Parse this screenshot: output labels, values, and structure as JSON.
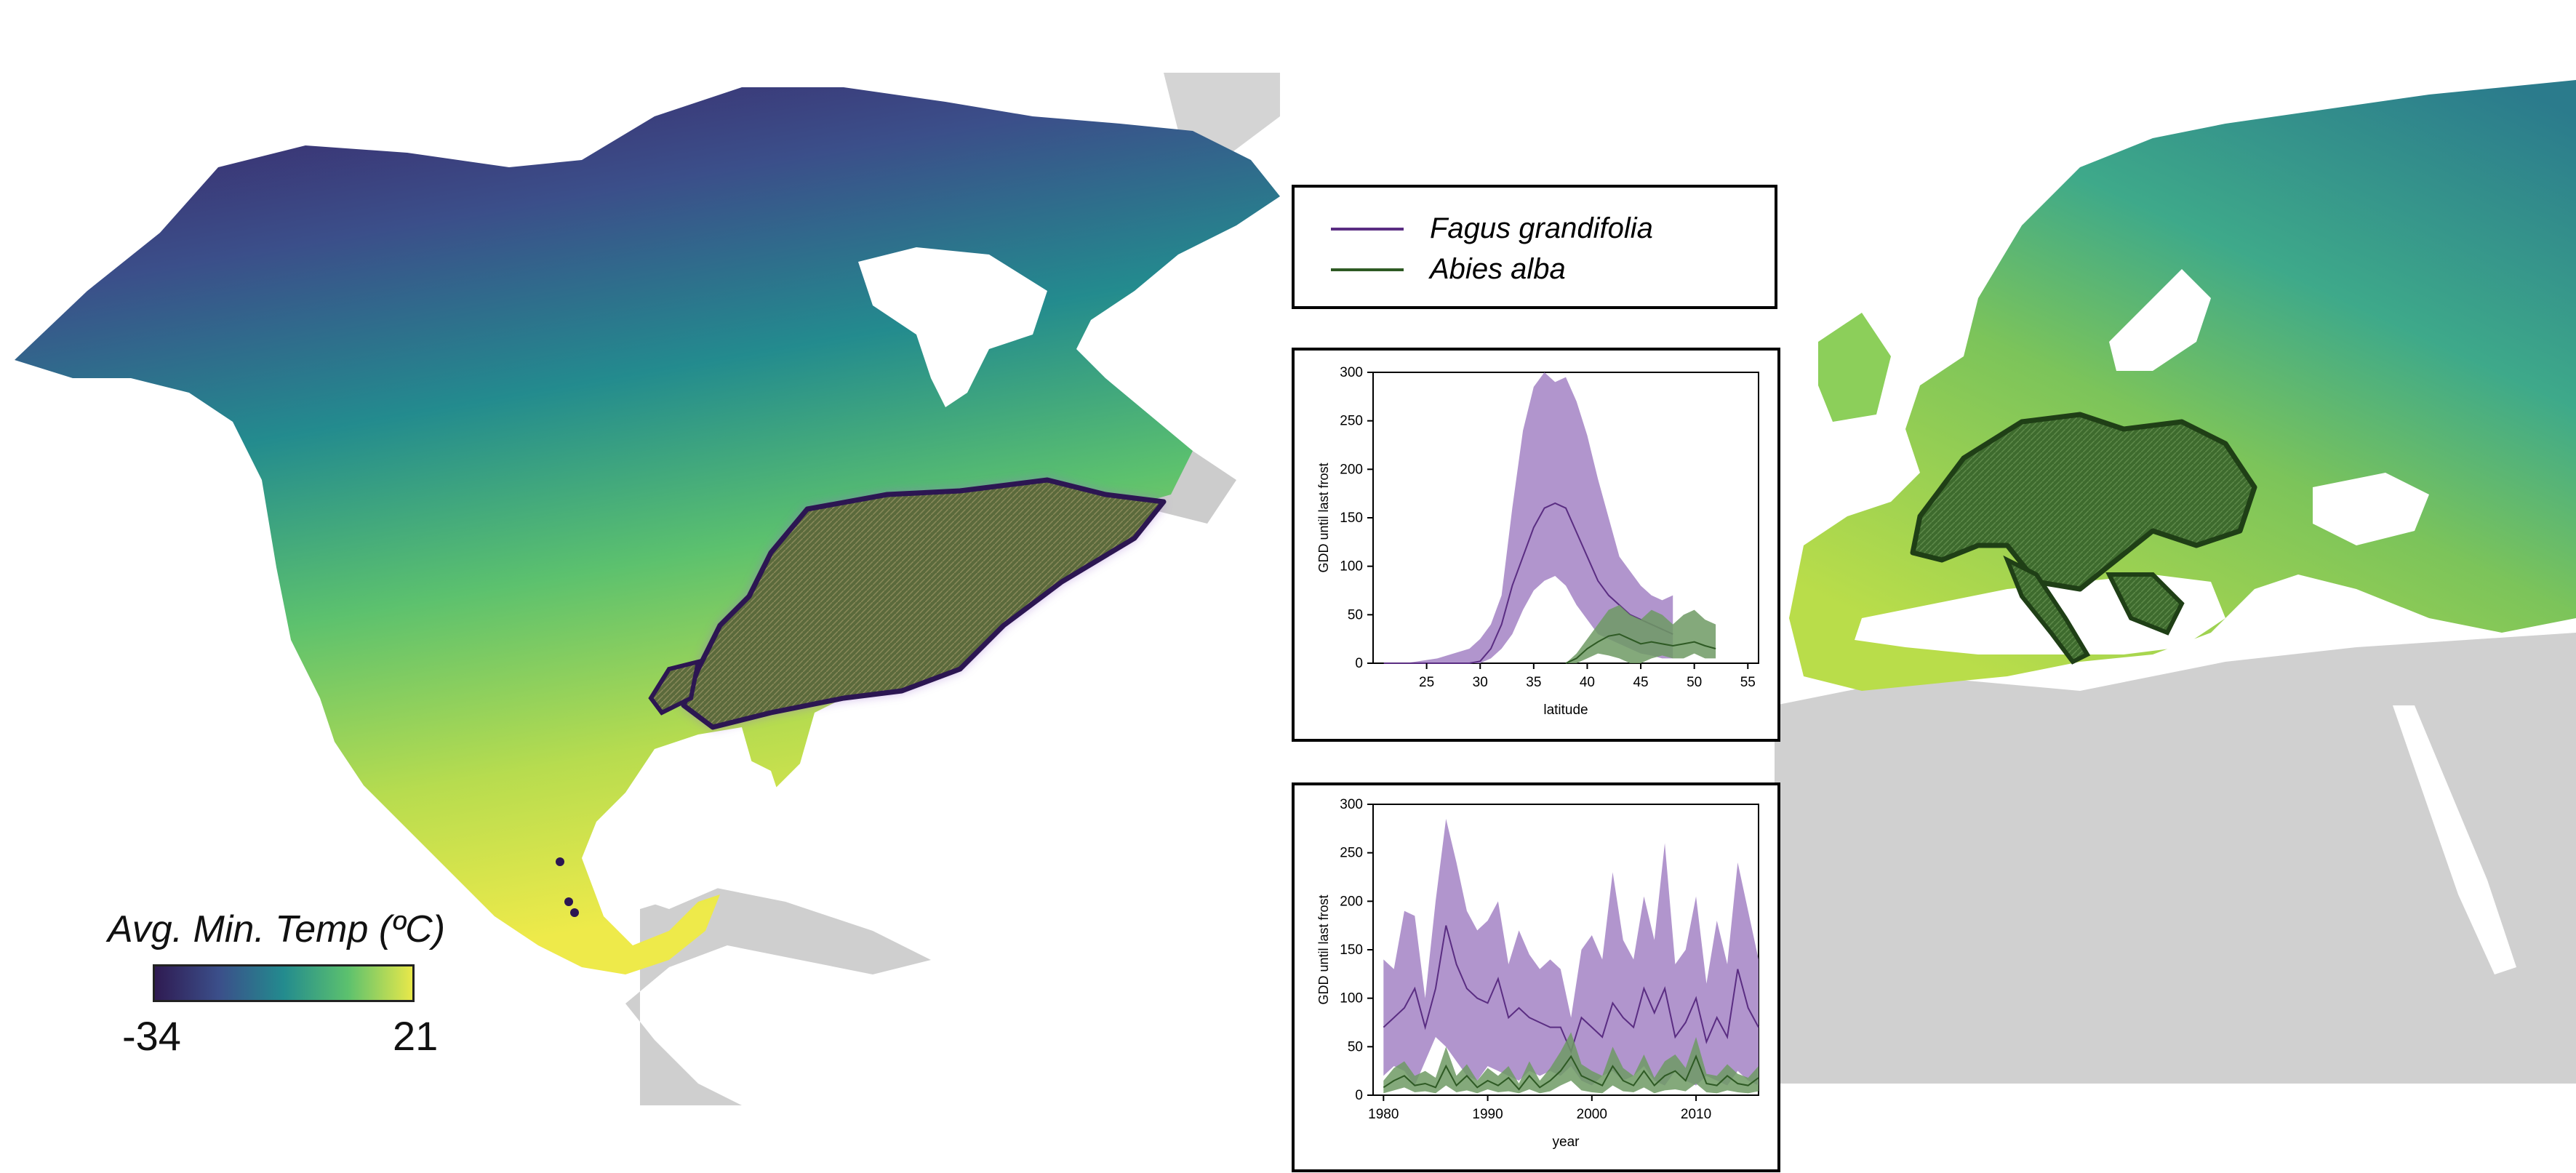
{
  "colors": {
    "fagus": "#5a2d82",
    "fagus_fill": "#a889c8",
    "abies": "#2e5a24",
    "abies_fill": "#6f9a64",
    "colorbar_stops": [
      "#2f1b52",
      "#3b4f8a",
      "#238b8e",
      "#5cc16e",
      "#e8e84a"
    ]
  },
  "colorbar": {
    "title": "Avg. Min. Temp (ºC)",
    "min_label": "-34",
    "max_label": "21"
  },
  "legend": {
    "items": [
      {
        "label": "Fagus grandifolia",
        "color": "#5a2d82"
      },
      {
        "label": "Abies alba",
        "color": "#2e5a24"
      }
    ]
  },
  "chart_data": [
    {
      "type": "area",
      "xlabel": "latitude",
      "ylabel": "GDD until last frost",
      "xlim": [
        20,
        56
      ],
      "ylim": [
        0,
        300
      ],
      "xticks": [
        25,
        30,
        35,
        40,
        45,
        50,
        55
      ],
      "yticks": [
        0,
        50,
        100,
        150,
        200,
        250,
        300
      ],
      "series": [
        {
          "name": "Fagus grandifolia",
          "x": [
            21,
            23,
            26,
            29,
            30,
            31,
            32,
            33,
            34,
            35,
            36,
            37,
            38,
            39,
            40,
            41,
            42,
            43,
            44,
            45,
            46,
            47,
            48
          ],
          "lower": [
            0,
            0,
            0,
            0,
            0,
            5,
            15,
            30,
            55,
            75,
            85,
            90,
            80,
            60,
            45,
            30,
            25,
            20,
            15,
            10,
            8,
            5,
            5
          ],
          "mean": [
            0,
            0,
            0,
            0,
            2,
            15,
            40,
            80,
            110,
            140,
            160,
            165,
            160,
            135,
            110,
            85,
            70,
            60,
            50,
            45,
            40,
            35,
            30
          ],
          "upper": [
            0,
            0,
            5,
            15,
            25,
            40,
            70,
            160,
            240,
            285,
            300,
            290,
            295,
            270,
            235,
            190,
            150,
            110,
            95,
            80,
            70,
            65,
            70
          ]
        },
        {
          "name": "Abies alba",
          "x": [
            38,
            39,
            40,
            41,
            42,
            43,
            44,
            45,
            46,
            47,
            48,
            49,
            50,
            51,
            52
          ],
          "lower": [
            0,
            0,
            5,
            10,
            8,
            5,
            0,
            0,
            5,
            8,
            5,
            5,
            10,
            5,
            5
          ],
          "mean": [
            0,
            5,
            15,
            22,
            28,
            30,
            25,
            20,
            22,
            20,
            18,
            20,
            22,
            18,
            15
          ],
          "upper": [
            0,
            10,
            25,
            40,
            55,
            60,
            50,
            45,
            55,
            50,
            40,
            50,
            55,
            45,
            40
          ]
        }
      ]
    },
    {
      "type": "area",
      "xlabel": "year",
      "ylabel": "GDD until last frost",
      "xlim": [
        1979,
        2016
      ],
      "ylim": [
        0,
        300
      ],
      "xticks": [
        1980,
        1990,
        2000,
        2010
      ],
      "yticks": [
        0,
        50,
        100,
        150,
        200,
        250,
        300
      ],
      "series": [
        {
          "name": "Fagus grandifolia",
          "x": [
            1980,
            1981,
            1982,
            1983,
            1984,
            1985,
            1986,
            1987,
            1988,
            1989,
            1990,
            1991,
            1992,
            1993,
            1994,
            1995,
            1996,
            1997,
            1998,
            1999,
            2000,
            2001,
            2002,
            2003,
            2004,
            2005,
            2006,
            2007,
            2008,
            2009,
            2010,
            2011,
            2012,
            2013,
            2014,
            2015,
            2016
          ],
          "lower": [
            20,
            30,
            25,
            10,
            35,
            60,
            50,
            35,
            20,
            15,
            30,
            25,
            20,
            15,
            25,
            20,
            25,
            20,
            30,
            15,
            10,
            20,
            25,
            15,
            20,
            30,
            15,
            10,
            25,
            15,
            10,
            20,
            15,
            10,
            25,
            15,
            10
          ],
          "mean": [
            70,
            80,
            90,
            110,
            70,
            110,
            175,
            135,
            110,
            100,
            95,
            120,
            80,
            90,
            80,
            75,
            70,
            70,
            45,
            80,
            70,
            60,
            95,
            80,
            70,
            110,
            85,
            110,
            60,
            75,
            100,
            55,
            80,
            60,
            130,
            90,
            70
          ],
          "upper": [
            140,
            130,
            190,
            185,
            100,
            200,
            285,
            240,
            190,
            170,
            180,
            200,
            135,
            170,
            145,
            130,
            140,
            130,
            80,
            150,
            165,
            140,
            230,
            160,
            140,
            205,
            160,
            260,
            135,
            150,
            205,
            115,
            180,
            135,
            240,
            190,
            140
          ]
        },
        {
          "name": "Abies alba",
          "x": [
            1980,
            1981,
            1982,
            1983,
            1984,
            1985,
            1986,
            1987,
            1988,
            1989,
            1990,
            1991,
            1992,
            1993,
            1994,
            1995,
            1996,
            1997,
            1998,
            1999,
            2000,
            2001,
            2002,
            2003,
            2004,
            2005,
            2006,
            2007,
            2008,
            2009,
            2010,
            2011,
            2012,
            2013,
            2014,
            2015,
            2016
          ],
          "lower": [
            2,
            5,
            8,
            3,
            4,
            2,
            10,
            3,
            5,
            2,
            6,
            3,
            4,
            2,
            6,
            2,
            4,
            10,
            15,
            5,
            3,
            2,
            10,
            4,
            3,
            8,
            2,
            5,
            6,
            4,
            12,
            3,
            2,
            5,
            3,
            2,
            4
          ],
          "mean": [
            8,
            15,
            20,
            10,
            12,
            8,
            30,
            10,
            20,
            8,
            15,
            10,
            18,
            6,
            20,
            8,
            15,
            25,
            40,
            20,
            15,
            10,
            30,
            15,
            10,
            25,
            10,
            20,
            25,
            15,
            40,
            12,
            10,
            20,
            12,
            10,
            18
          ],
          "upper": [
            15,
            28,
            35,
            20,
            25,
            18,
            50,
            20,
            32,
            15,
            28,
            20,
            30,
            12,
            35,
            15,
            28,
            45,
            65,
            32,
            25,
            20,
            50,
            28,
            20,
            42,
            18,
            35,
            42,
            28,
            60,
            22,
            20,
            32,
            22,
            18,
            30
          ]
        }
      ]
    }
  ]
}
